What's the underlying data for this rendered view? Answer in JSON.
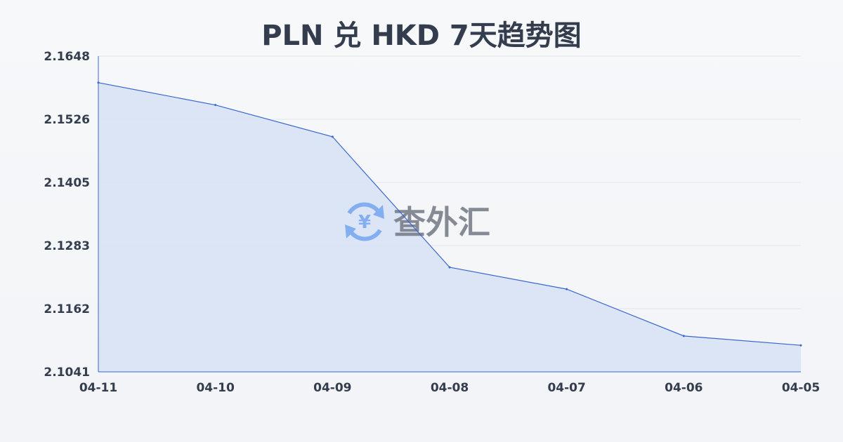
{
  "chart_data": {
    "type": "area",
    "title": "PLN 兑 HKD 7天趋势图",
    "xlabel": "",
    "ylabel": "",
    "categories": [
      "04-11",
      "04-10",
      "04-09",
      "04-08",
      "04-07",
      "04-06",
      "04-05"
    ],
    "values": [
      2.1597,
      2.1554,
      2.1493,
      2.1242,
      2.12,
      2.111,
      2.1092
    ],
    "ylim": [
      2.1041,
      2.1648
    ],
    "yticks": [
      "2.1648",
      "2.1526",
      "2.1405",
      "2.1283",
      "2.1162",
      "2.1041"
    ],
    "grid": true,
    "colors": {
      "line": "#3a66d0",
      "fill": "#d7e2f6",
      "grid": "#e3e6ea",
      "text": "#333d4d"
    }
  },
  "watermark": {
    "text": "查外汇",
    "icon": "yen-exchange-icon",
    "icon_color": "#7aa9f0",
    "text_color": "#7a7f8a"
  }
}
